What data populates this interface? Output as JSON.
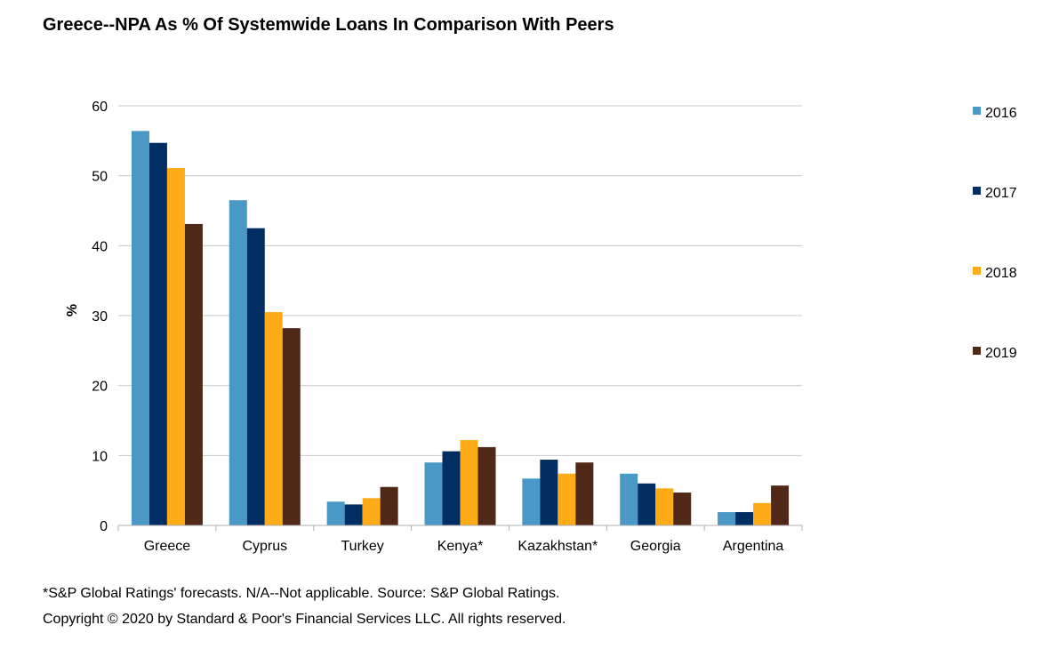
{
  "chart_data": {
    "type": "bar",
    "title": "Greece--NPA As % Of Systemwide Loans In Comparison With Peers",
    "ylabel": "%",
    "xlabel": "",
    "ylim": [
      0,
      60
    ],
    "yticks": [
      0,
      10,
      20,
      30,
      40,
      50,
      60
    ],
    "grid": true,
    "legend_position": "right",
    "categories": [
      "Greece",
      "Cyprus",
      "Turkey",
      "Kenya*",
      "Kazakhstan*",
      "Georgia",
      "Argentina"
    ],
    "series": [
      {
        "name": "2016",
        "color": "#4a98c5",
        "values": [
          56.4,
          46.5,
          3.4,
          9.0,
          6.7,
          7.4,
          1.9
        ]
      },
      {
        "name": "2017",
        "color": "#002d62",
        "values": [
          54.7,
          42.5,
          3.0,
          10.6,
          9.4,
          6.0,
          1.9
        ]
      },
      {
        "name": "2018",
        "color": "#fdac18",
        "values": [
          51.1,
          30.5,
          3.9,
          12.2,
          7.4,
          5.3,
          3.2
        ]
      },
      {
        "name": "2019",
        "color": "#4f2817",
        "values": [
          43.1,
          28.2,
          5.5,
          11.2,
          9.0,
          4.7,
          5.7
        ]
      }
    ]
  },
  "footnotes": {
    "line1": "*S&P Global Ratings' forecasts. N/A--Not applicable. Source: S&P Global Ratings.",
    "line2": "Copyright © 2020 by Standard & Poor's Financial Services LLC. All rights reserved."
  }
}
